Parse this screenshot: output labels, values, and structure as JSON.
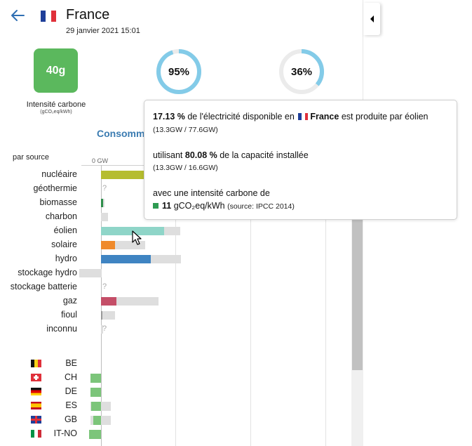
{
  "header": {
    "country": "France",
    "datetime": "29 janvier 2021 15:01",
    "back_icon": "arrow-left-icon",
    "flag_icon": "flag-fr-icon"
  },
  "stats": {
    "carbon_value": "40g",
    "carbon_label": "Intensité carbone",
    "carbon_unit": "(gCO₂eq/kWh)",
    "low_carbon_pct": "95%",
    "low_carbon_fraction": 0.95,
    "renewable_pct": "36%",
    "renewable_fraction": 0.36,
    "carbon_color": "#5bb85d",
    "donut_color": "#83cbe8"
  },
  "section": {
    "title": "Consomm",
    "subtitle": "par source",
    "axis_zero": "0 GW"
  },
  "sources": [
    {
      "label": "nucléaire",
      "color": "#b5bd2f",
      "produced": 64,
      "capacity": 64,
      "unknown": false
    },
    {
      "label": "géothermie",
      "color": "#cccccc",
      "produced": 0,
      "capacity": 0,
      "unknown": true
    },
    {
      "label": "biomasse",
      "color": "#2e8f4c",
      "produced": 0.4,
      "capacity": 0.7,
      "unknown": false
    },
    {
      "label": "charbon",
      "color": "#cccccc",
      "produced": 0,
      "capacity": 1.5,
      "unknown": false
    },
    {
      "label": "éolien",
      "color": "#8fd5c8",
      "produced": 13.3,
      "capacity": 16.6,
      "unknown": false
    },
    {
      "label": "solaire",
      "color": "#ef8a2c",
      "produced": 3.0,
      "capacity": 9.3,
      "unknown": false
    },
    {
      "label": "hydro",
      "color": "#3f84c2",
      "produced": 10.4,
      "capacity": 16.8,
      "unknown": false
    },
    {
      "label": "stockage hydro",
      "color": "#cccccc",
      "produced": 0,
      "capacity": 4.7,
      "negative": 4.6,
      "unknown": false
    },
    {
      "label": "stockage batterie",
      "color": "#cccccc",
      "produced": 0,
      "capacity": 0,
      "unknown": true
    },
    {
      "label": "gaz",
      "color": "#c44e67",
      "produced": 3.2,
      "capacity": 12.1,
      "unknown": false
    },
    {
      "label": "fioul",
      "color": "#999999",
      "produced": 0.3,
      "capacity": 2.9,
      "unknown": false
    },
    {
      "label": "inconnu",
      "color": "#cccccc",
      "produced": 0,
      "capacity": 0.5,
      "unknown": true
    }
  ],
  "exchanges": [
    {
      "code": "BE",
      "flag": "flag-be-icon",
      "flow": 0,
      "capacity": 0
    },
    {
      "code": "CH",
      "flag": "flag-ch-icon",
      "flow": -2.9,
      "capacity": 0
    },
    {
      "code": "DE",
      "flag": "flag-de-icon",
      "flow": -2.9,
      "capacity": 0
    },
    {
      "code": "ES",
      "flag": "flag-es-icon",
      "flow": -2.6,
      "capacity": 2.8
    },
    {
      "code": "GB",
      "flag": "flag-gb-icon",
      "flow": -2.1,
      "capacity": 2.8
    },
    {
      "code": "IT-NO",
      "flag": "flag-it-icon",
      "flow": -3.2,
      "capacity": 0
    }
  ],
  "tooltip": {
    "pct1": "17.13 %",
    "text1a": "de l'électricité disponible en",
    "country": "France",
    "text1b": "est produite par éolien",
    "sub1": "(13.3GW / 77.6GW)",
    "text2a": "utilisant",
    "pct2": "80.08 %",
    "text2b": "de la capacité installée",
    "sub2": "(13.3GW / 16.6GW)",
    "text3": "avec une intensité carbone de",
    "ci_value": "11",
    "ci_unit": "gCO₂eq/kWh",
    "ci_source": "(source: IPCC 2014)",
    "ci_color": "#2e9b52"
  },
  "ui": {
    "collapse_icon": "triangle-left-icon",
    "cursor_icon": "mouse-pointer-icon"
  }
}
